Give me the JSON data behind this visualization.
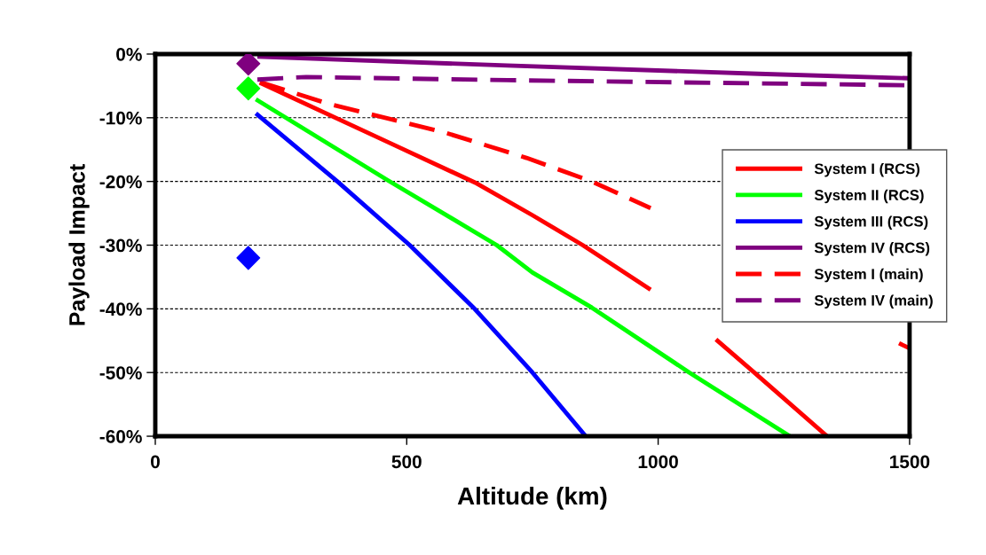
{
  "chart_data": {
    "type": "line",
    "xlabel": "Altitude (km)",
    "ylabel": "Payload Impact",
    "xlim": [
      0,
      1500
    ],
    "xticks": [
      0,
      500,
      1000,
      1500
    ],
    "ylim": [
      -60,
      0
    ],
    "yticks": [
      {
        "value": -60,
        "label": "-60%"
      },
      {
        "value": -50,
        "label": "-50%"
      },
      {
        "value": -40,
        "label": "-40%"
      },
      {
        "value": -30,
        "label": "-30%"
      },
      {
        "value": -20,
        "label": "-20%"
      },
      {
        "value": -10,
        "label": "-10%"
      },
      {
        "value": 0,
        "label": "0%"
      }
    ],
    "grid": "y",
    "legend": "right",
    "marker": "none",
    "series": [
      {
        "name": "System I (RCS)",
        "color": "#ff0000",
        "line_style": "solid",
        "x": [
          208,
          462,
          639,
          750,
          850,
          985,
          1050,
          1115,
          1191,
          1336
        ],
        "values": [
          -4.5,
          -13.8,
          -20.3,
          -25.3,
          -30,
          -37,
          null,
          -44.8,
          -50,
          -60
        ]
      },
      {
        "name": "System II (RCS)",
        "color": "#00ff00",
        "line_style": "solid",
        "x": [
          200,
          462,
          679,
          750,
          868,
          1062,
          1262
        ],
        "values": [
          -7.1,
          -19.8,
          -30,
          -34.3,
          -39.8,
          -50,
          -60
        ]
      },
      {
        "name": "System III (RCS)",
        "color": "#0000ff",
        "line_style": "solid",
        "x": [
          200,
          362,
          506,
          635,
          750,
          856
        ],
        "values": [
          -9.3,
          -20,
          -30,
          -40,
          -50,
          -60
        ]
      },
      {
        "name": "System IV (RCS)",
        "color": "#7f007f",
        "line_style": "solid",
        "x": [
          203,
          700,
          1200,
          1500
        ],
        "values": [
          -0.4,
          -1.8,
          -3.1,
          -3.8
        ]
      },
      {
        "name": "System I (main)",
        "color": "#ff0000",
        "line_style": "dashed",
        "x": [
          208,
          344,
          579,
          738,
          868,
          985,
          1200,
          1479,
          1500
        ],
        "values": [
          -4.4,
          -7.8,
          -12.4,
          -16.3,
          -20,
          -24.2,
          null,
          -45.4,
          -46.2
        ]
      },
      {
        "name": "System IV (main)",
        "color": "#7f007f",
        "line_style": "dashed",
        "x": [
          203,
          300,
          700,
          1200,
          1500
        ],
        "values": [
          -4,
          -3.6,
          -4.1,
          -4.6,
          -4.9
        ]
      },
      {
        "type": "scatter",
        "marker": "diamond",
        "color": "#7f007f",
        "x": [
          185
        ],
        "values": [
          -1.5
        ]
      },
      {
        "type": "scatter",
        "marker": "diamond",
        "color": "#00ff00",
        "x": [
          185
        ],
        "values": [
          -5.4
        ]
      },
      {
        "type": "scatter",
        "marker": "diamond",
        "color": "#0000ff",
        "x": [
          185
        ],
        "values": [
          -32
        ]
      }
    ]
  }
}
